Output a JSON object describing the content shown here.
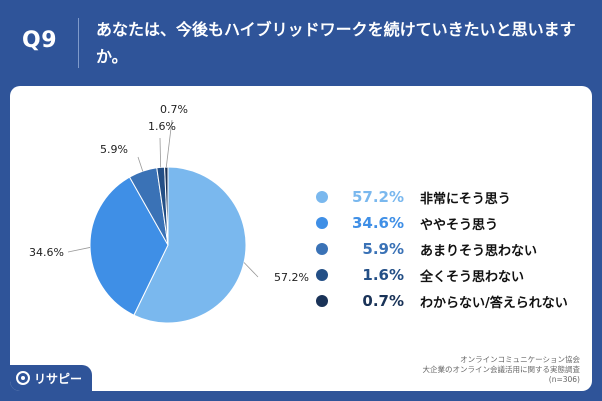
{
  "header": {
    "question_no": "Q9",
    "question_text": "あなたは、今後もハイブリッドワークを続けていきたいと思いますか。"
  },
  "chart_data": {
    "type": "pie",
    "title": "あなたは、今後もハイブリッドワークを続けていきたいと思いますか。",
    "categories": [
      "非常にそう思う",
      "ややそう思う",
      "あまりそう思わない",
      "全くそう思わない",
      "わからない/答えられない"
    ],
    "values": [
      57.2,
      34.6,
      5.9,
      1.6,
      0.7
    ],
    "labels": [
      "57.2%",
      "34.6%",
      "5.9%",
      "1.6%",
      "0.7%"
    ],
    "colors": [
      "#7ab8ee",
      "#3f8fe6",
      "#3a72b6",
      "#234f86",
      "#1a3358"
    ],
    "legend_position": "right"
  },
  "footer": {
    "org": "オンラインコミュニケーション協会",
    "survey": "大企業のオンライン会議活用に関する実態調査",
    "sample": "(n=306)"
  },
  "logo": {
    "text": "リサピー",
    "icon": "risapi-logo-icon"
  }
}
